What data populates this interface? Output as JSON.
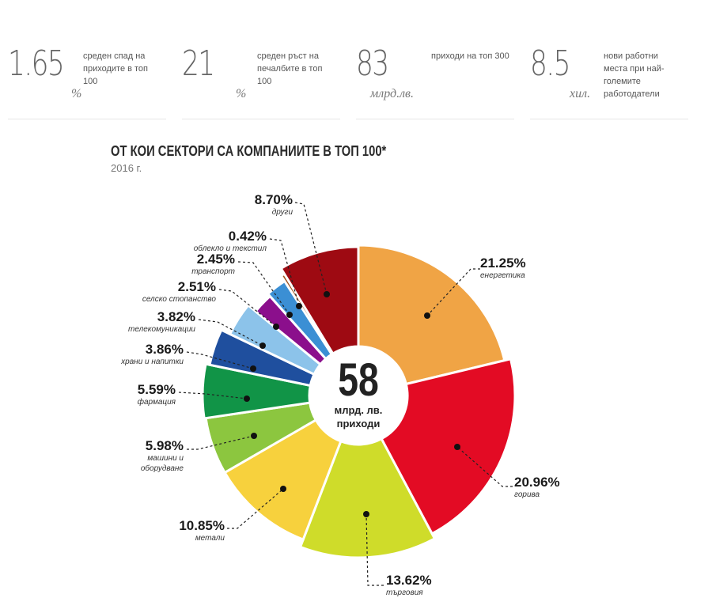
{
  "stats": [
    {
      "value": "1.65",
      "unit": "%",
      "desc": "среден спад на приходите в топ 100"
    },
    {
      "value": "21",
      "unit": "%",
      "desc": "среден ръст на печалбите в топ 100"
    },
    {
      "value": "83",
      "unit": "млрд.лв.",
      "desc": "приходи на топ 300"
    },
    {
      "value": "8.5",
      "unit": "хил.",
      "desc": "нови работни места при най-големите работодатели"
    }
  ],
  "center": {
    "value": "58",
    "line1": "млрд. лв.",
    "line2": "приходи"
  },
  "chart_data": {
    "type": "pie",
    "title": "ОТ КОИ СЕКТОРИ СА КОМПАНИИТЕ В ТОП 100*",
    "subtitle": "2016 г.",
    "slices": [
      {
        "label": "енергетика",
        "value": 21.25,
        "text": "21.25%",
        "color": "#f0a445"
      },
      {
        "label": "горива",
        "value": 20.96,
        "text": "20.96%",
        "color": "#e30b24"
      },
      {
        "label": "търговия",
        "value": 13.62,
        "text": "13.62%",
        "color": "#cfdc2a"
      },
      {
        "label": "метали",
        "value": 10.85,
        "text": "10.85%",
        "color": "#f7d13d"
      },
      {
        "label": "машини и оборудване",
        "value": 5.98,
        "text": "5.98%",
        "color": "#8cc63f"
      },
      {
        "label": "фармация",
        "value": 5.59,
        "text": "5.59%",
        "color": "#119447"
      },
      {
        "label": "храни и напитки",
        "value": 3.86,
        "text": "3.86%",
        "color": "#1f4f9e"
      },
      {
        "label": "телекомуникации",
        "value": 3.82,
        "text": "3.82%",
        "color": "#8cc3ea"
      },
      {
        "label": "селско стопанство",
        "value": 2.51,
        "text": "2.51%",
        "color": "#8b0f8c"
      },
      {
        "label": "транспорт",
        "value": 2.45,
        "text": "2.45%",
        "color": "#3b8fd4"
      },
      {
        "label": "облекло и текстил",
        "value": 0.42,
        "text": "0.42%",
        "color": "#a0521d"
      },
      {
        "label": "други",
        "value": 8.7,
        "text": "8.70%",
        "color": "#9e0a12"
      }
    ]
  }
}
